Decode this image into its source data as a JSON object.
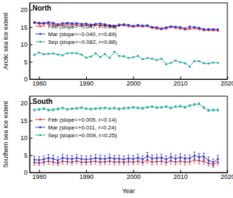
{
  "chart_data": [
    {
      "type": "line",
      "title": "North",
      "y_label": "Arctic sea ice extent",
      "x": [
        1979,
        1980,
        1981,
        1982,
        1983,
        1984,
        1985,
        1986,
        1987,
        1988,
        1989,
        1990,
        1991,
        1992,
        1993,
        1994,
        1995,
        1996,
        1997,
        1998,
        1999,
        2000,
        2001,
        2002,
        2003,
        2004,
        2005,
        2006,
        2007,
        2008,
        2009,
        2010,
        2011,
        2012,
        2013,
        2014,
        2015,
        2016,
        2017,
        2018
      ],
      "xlim": [
        1978,
        2020
      ],
      "xticks": [
        1980,
        1990,
        2000,
        2010,
        2020
      ],
      "ylim": [
        0,
        22
      ],
      "yticks": [
        0,
        5,
        10,
        15,
        20
      ],
      "legend": "upper left",
      "marker": "circle",
      "series": [
        {
          "name": "Feb (slope=−0.047, r=0.91)",
          "color": "#e0333a",
          "values": [
            16.2,
            16.0,
            15.9,
            16.0,
            15.8,
            15.5,
            15.8,
            15.9,
            15.8,
            15.7,
            15.5,
            15.6,
            15.4,
            15.6,
            15.5,
            15.5,
            15.2,
            15.0,
            15.4,
            15.5,
            15.3,
            15.1,
            15.3,
            15.2,
            15.3,
            14.8,
            14.6,
            14.4,
            14.6,
            15.0,
            14.8,
            14.6,
            14.3,
            14.5,
            14.7,
            14.4,
            14.1,
            14.1,
            14.1,
            14.0
          ],
          "errors": [
            0.2,
            0.2,
            0.2,
            0.2,
            0.2,
            0.2,
            0.2,
            0.2,
            0.2,
            0.2,
            0.2,
            0.2,
            0.2,
            0.2,
            0.2,
            0.2,
            0.2,
            0.2,
            0.2,
            0.2,
            0.2,
            0.2,
            0.2,
            0.2,
            0.2,
            0.2,
            0.2,
            0.2,
            0.2,
            0.2,
            0.2,
            0.2,
            0.2,
            0.2,
            0.2,
            0.2,
            0.2,
            0.2,
            0.2,
            0.2
          ]
        },
        {
          "name": "Mar (slope=−0.040, r=0.89)",
          "color": "#2633d0",
          "values": [
            16.4,
            16.2,
            16.2,
            16.4,
            16.2,
            15.8,
            16.1,
            16.2,
            16.1,
            16.1,
            15.9,
            16.0,
            15.7,
            15.9,
            16.0,
            15.8,
            15.5,
            15.3,
            15.7,
            15.8,
            15.6,
            15.3,
            15.6,
            15.4,
            15.5,
            15.0,
            14.9,
            14.6,
            14.9,
            15.2,
            15.1,
            15.0,
            14.6,
            15.1,
            15.0,
            14.8,
            14.4,
            14.4,
            14.4,
            14.3
          ],
          "errors": [
            0.2,
            0.2,
            0.2,
            0.2,
            0.2,
            0.2,
            0.2,
            0.2,
            0.2,
            0.2,
            0.2,
            0.2,
            0.2,
            0.2,
            0.2,
            0.2,
            0.2,
            0.2,
            0.2,
            0.2,
            0.2,
            0.2,
            0.2,
            0.2,
            0.2,
            0.2,
            0.2,
            0.2,
            0.2,
            0.2,
            0.2,
            0.2,
            0.2,
            0.2,
            0.2,
            0.2,
            0.2,
            0.2,
            0.2,
            0.2
          ]
        },
        {
          "name": "Sep (slope=−0.082, r=0.88)",
          "color": "#22aaa0",
          "values": [
            7.0,
            7.7,
            7.2,
            7.3,
            7.4,
            7.1,
            6.9,
            7.5,
            7.5,
            7.5,
            7.1,
            6.2,
            6.5,
            7.5,
            6.4,
            7.2,
            6.1,
            7.9,
            6.7,
            6.6,
            6.1,
            6.3,
            6.7,
            5.8,
            6.1,
            5.9,
            5.5,
            5.9,
            4.3,
            4.7,
            5.4,
            4.9,
            4.6,
            3.6,
            5.2,
            5.2,
            4.6,
            4.5,
            4.8,
            4.7
          ],
          "errors": [
            0.15,
            0.15,
            0.15,
            0.15,
            0.15,
            0.15,
            0.15,
            0.15,
            0.15,
            0.15,
            0.15,
            0.15,
            0.15,
            0.15,
            0.15,
            0.15,
            0.15,
            0.15,
            0.15,
            0.15,
            0.15,
            0.15,
            0.15,
            0.15,
            0.15,
            0.15,
            0.15,
            0.15,
            0.15,
            0.15,
            0.15,
            0.15,
            0.15,
            0.15,
            0.15,
            0.15,
            0.15,
            0.15,
            0.15,
            0.15
          ]
        }
      ]
    },
    {
      "type": "line",
      "title": "South",
      "x_label": "Year",
      "y_label": "Southern sea ice extent",
      "x": [
        1979,
        1980,
        1981,
        1982,
        1983,
        1984,
        1985,
        1986,
        1987,
        1988,
        1989,
        1990,
        1991,
        1992,
        1993,
        1994,
        1995,
        1996,
        1997,
        1998,
        1999,
        2000,
        2001,
        2002,
        2003,
        2004,
        2005,
        2006,
        2007,
        2008,
        2009,
        2010,
        2011,
        2012,
        2013,
        2014,
        2015,
        2016,
        2017,
        2018
      ],
      "xlim": [
        1978,
        2020
      ],
      "xticks": [
        1980,
        1990,
        2000,
        2010,
        2020
      ],
      "ylim": [
        0,
        22
      ],
      "yticks": [
        0,
        5,
        10,
        15,
        20
      ],
      "legend": "upper left",
      "marker": "circle",
      "series": [
        {
          "name": "Feb (slope=+0.005, r=0.14)",
          "color": "#e0333a",
          "values": [
            2.9,
            2.8,
            3.0,
            3.2,
            3.0,
            2.8,
            3.2,
            3.1,
            3.0,
            3.3,
            3.0,
            3.0,
            3.1,
            3.2,
            3.0,
            3.1,
            3.2,
            3.0,
            3.1,
            3.0,
            3.1,
            3.0,
            3.2,
            2.9,
            3.5,
            3.0,
            3.1,
            3.2,
            2.9,
            3.3,
            3.0,
            3.2,
            3.0,
            3.1,
            3.6,
            3.3,
            3.2,
            2.7,
            2.3,
            3.0
          ],
          "errors": [
            0.8,
            0.8,
            0.8,
            0.8,
            0.8,
            0.8,
            0.8,
            0.8,
            0.8,
            0.8,
            0.8,
            0.8,
            0.8,
            0.8,
            0.8,
            0.8,
            0.8,
            0.8,
            0.8,
            0.8,
            0.8,
            0.8,
            0.8,
            0.8,
            0.8,
            0.8,
            0.8,
            0.8,
            0.8,
            0.8,
            0.8,
            0.8,
            0.8,
            0.8,
            0.8,
            0.8,
            0.8,
            0.8,
            0.8,
            0.8
          ]
        },
        {
          "name": "Mar (slope=+0.011, r=0.24)",
          "color": "#2633d0",
          "values": [
            3.7,
            3.6,
            3.8,
            4.2,
            4.0,
            3.5,
            4.3,
            4.0,
            3.9,
            4.2,
            3.9,
            3.8,
            3.9,
            4.2,
            4.0,
            3.9,
            4.3,
            4.0,
            4.0,
            3.8,
            4.1,
            3.9,
            4.3,
            3.8,
            4.8,
            4.1,
            4.2,
            4.3,
            3.8,
            4.5,
            4.0,
            4.4,
            4.1,
            4.1,
            4.9,
            4.5,
            4.6,
            3.5,
            2.9,
            3.9
          ],
          "errors": [
            1.0,
            1.0,
            1.0,
            1.0,
            1.0,
            1.0,
            1.0,
            1.0,
            1.0,
            1.0,
            1.0,
            1.0,
            1.0,
            1.0,
            1.0,
            1.0,
            1.0,
            1.0,
            1.0,
            1.0,
            1.0,
            1.0,
            1.0,
            1.0,
            1.0,
            1.0,
            1.0,
            1.0,
            1.0,
            1.0,
            1.0,
            1.0,
            1.0,
            1.0,
            1.0,
            1.0,
            1.0,
            1.0,
            1.0,
            1.0
          ]
        },
        {
          "name": "Sep (slope=+0.009, r=0.25)",
          "color": "#22aaa0",
          "values": [
            18.0,
            18.2,
            18.4,
            18.0,
            18.1,
            18.3,
            18.6,
            18.2,
            18.4,
            18.5,
            18.7,
            18.4,
            18.3,
            18.4,
            18.5,
            18.6,
            18.4,
            18.6,
            18.3,
            18.5,
            18.6,
            18.8,
            18.6,
            18.5,
            18.8,
            19.0,
            18.7,
            18.8,
            19.0,
            18.6,
            19.0,
            19.1,
            18.8,
            19.3,
            19.6,
            19.8,
            18.7,
            17.9,
            18.0,
            18.0
          ],
          "errors": [
            0.3,
            0.3,
            0.3,
            0.3,
            0.3,
            0.3,
            0.3,
            0.3,
            0.3,
            0.3,
            0.3,
            0.3,
            0.3,
            0.3,
            0.3,
            0.3,
            0.3,
            0.3,
            0.3,
            0.3,
            0.3,
            0.3,
            0.3,
            0.3,
            0.3,
            0.3,
            0.3,
            0.3,
            0.3,
            0.3,
            0.3,
            0.3,
            0.3,
            0.3,
            0.3,
            0.3,
            0.3,
            0.3,
            0.3,
            0.3
          ]
        }
      ]
    }
  ]
}
